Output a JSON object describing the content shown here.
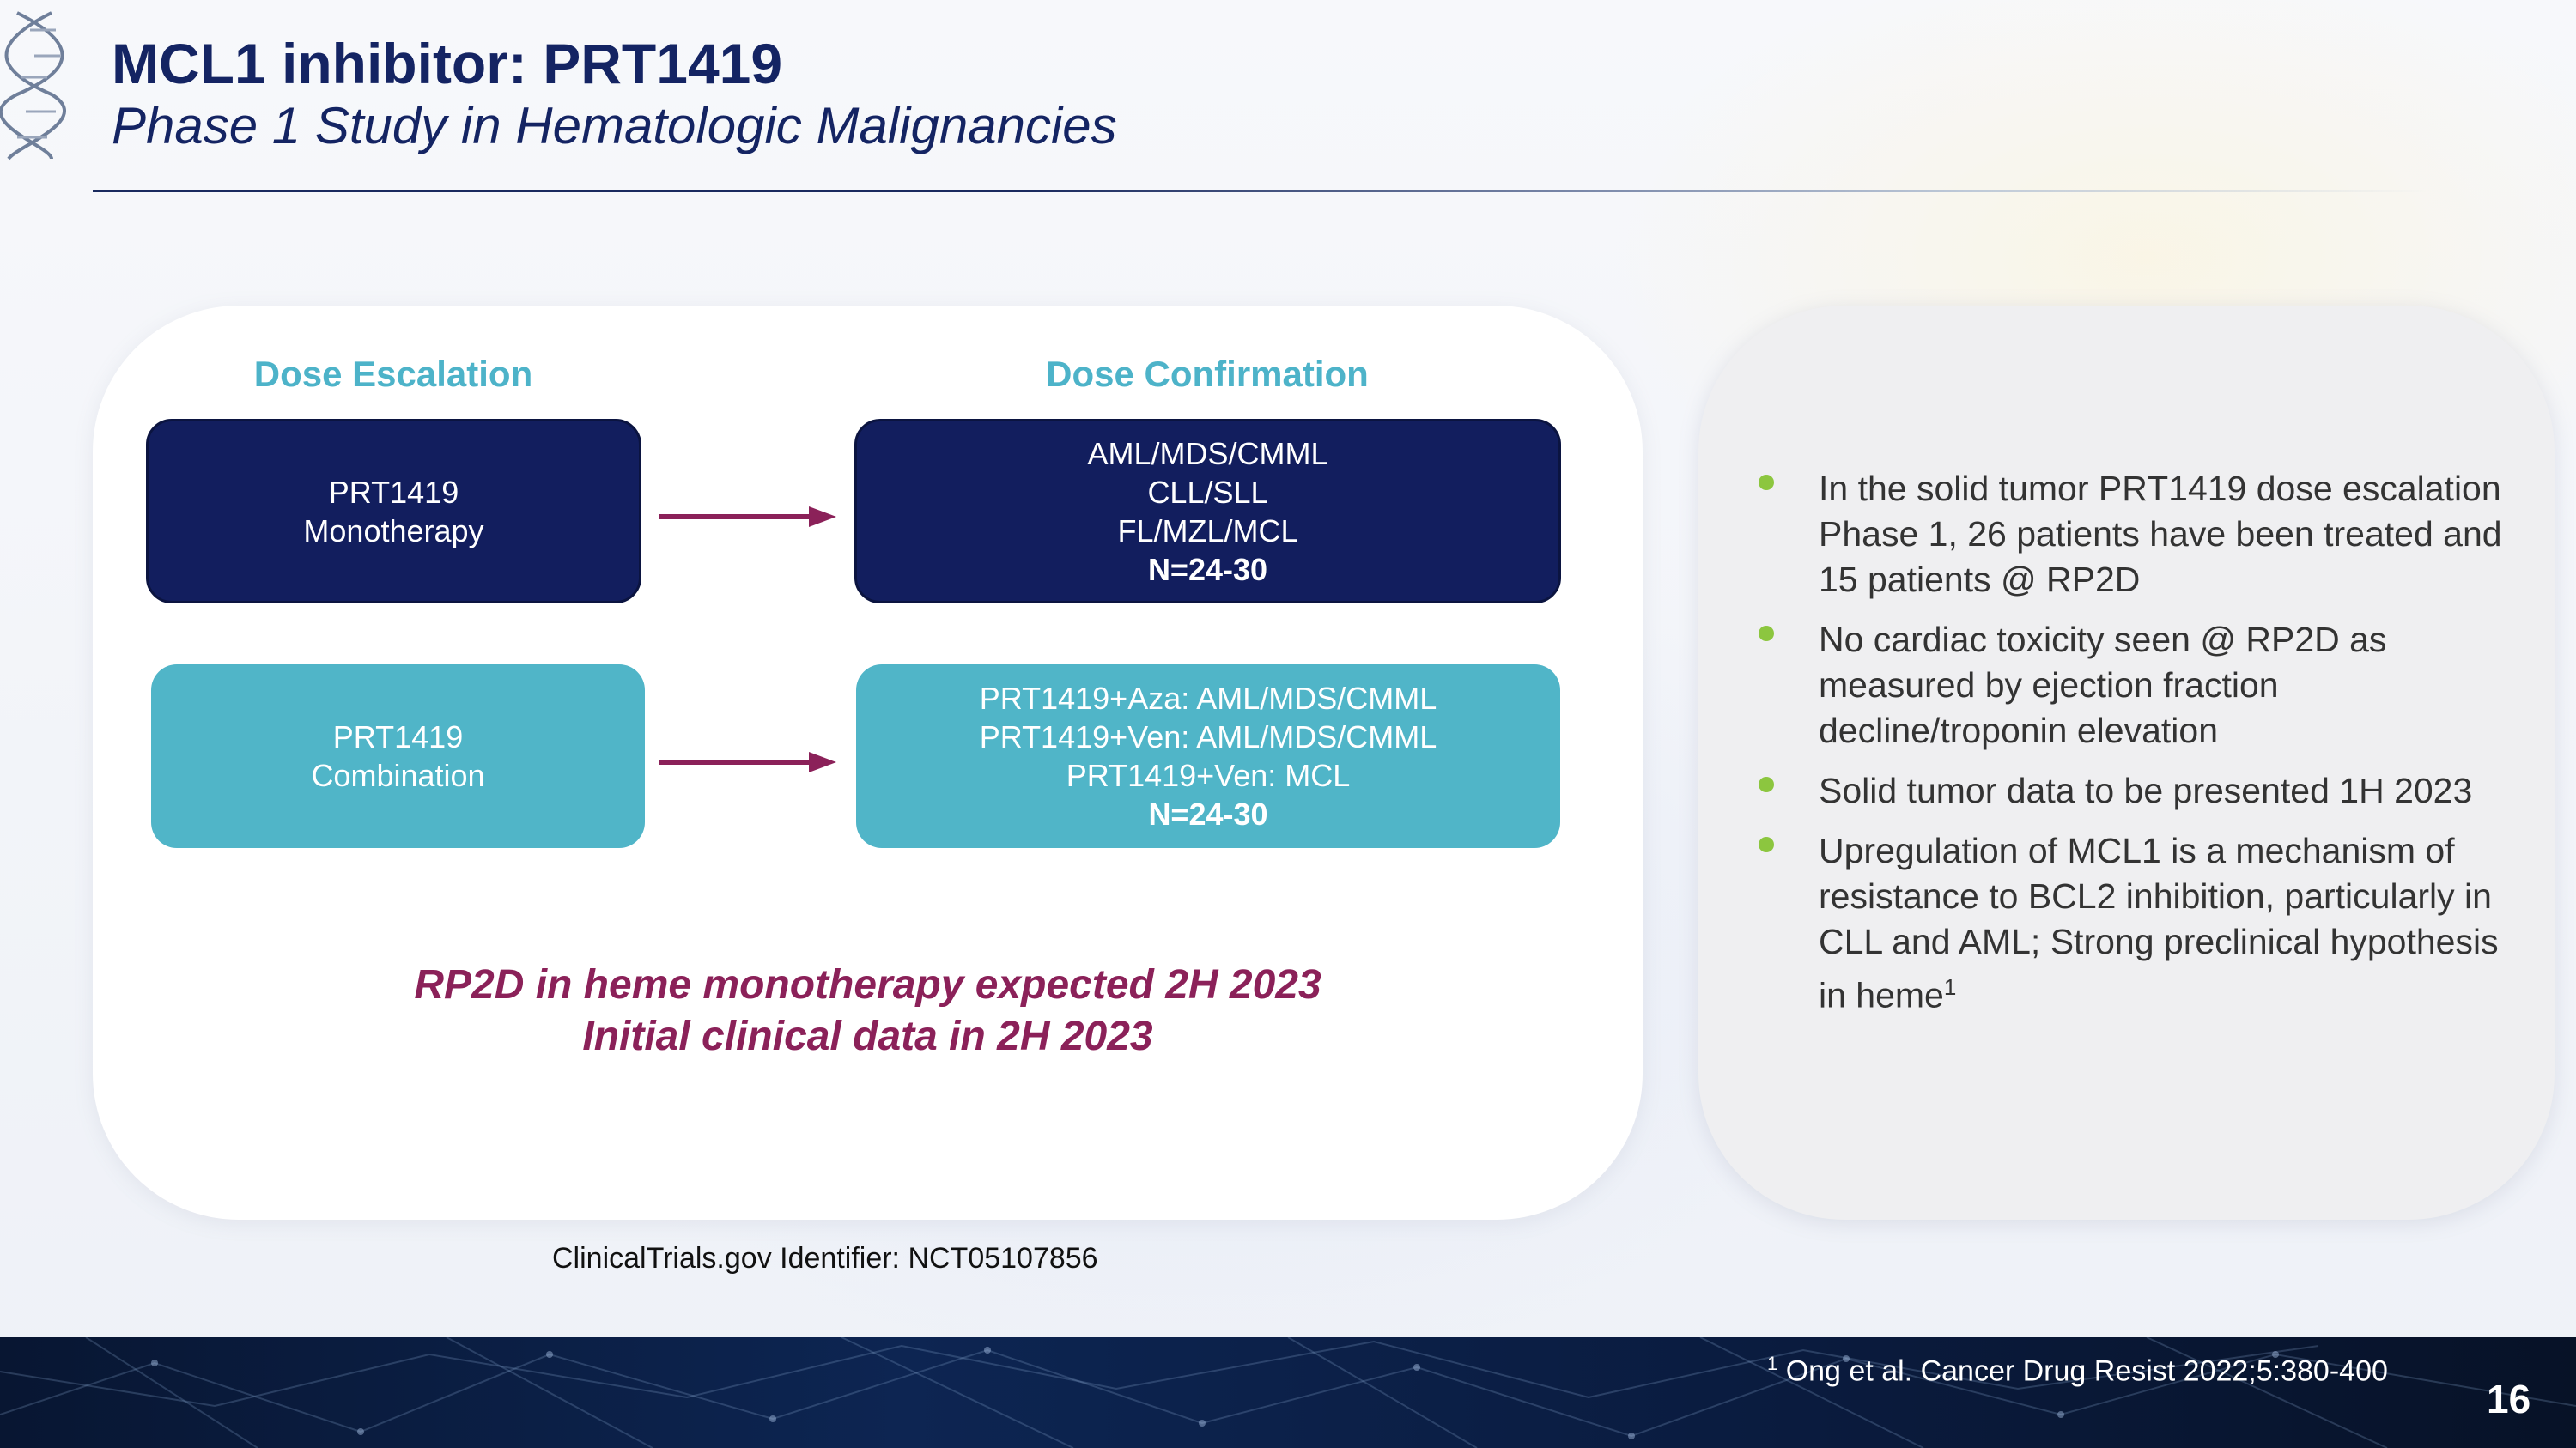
{
  "slide": {
    "title": "MCL1 inhibitor:  PRT1419",
    "subtitle": "Phase 1 Study in Hematologic Malignancies",
    "page_number": "16"
  },
  "design": {
    "columns": {
      "escalation": "Dose Escalation",
      "confirmation": "Dose Confirmation"
    },
    "monotherapy": {
      "line1": "PRT1419",
      "line2": "Monotherapy",
      "confirm_lines": [
        "AML/MDS/CMML",
        "CLL/SLL",
        "FL/MZL/MCL"
      ],
      "n": "N=24-30"
    },
    "combination": {
      "line1": "PRT1419",
      "line2": "Combination",
      "confirm_lines": [
        "PRT1419+Aza: AML/MDS/CMML",
        "PRT1419+Ven: AML/MDS/CMML",
        "PRT1419+Ven: MCL"
      ],
      "n": "N=24-30"
    },
    "conclusion": {
      "line1": "RP2D in heme monotherapy expected 2H 2023",
      "line2": "Initial clinical data in 2H 2023"
    },
    "identifier": "ClinicalTrials.gov Identifier: NCT05107856"
  },
  "highlights": [
    "In the solid tumor PRT1419 dose escalation Phase 1, 26 patients have been treated and 15 patients @ RP2D",
    "No cardiac toxicity seen @ RP2D as measured by ejection fraction decline/troponin elevation",
    "Solid tumor data to be presented 1H 2023",
    "Upregulation of MCL1 is a mechanism of resistance to BCL2 inhibition, particularly in CLL and AML; Strong preclinical hypothesis in heme"
  ],
  "highlight_last_ref": "1",
  "footnote": {
    "ref": "1",
    "text": "Ong et al. Cancer Drug Resist 2022;5:380-400"
  },
  "colors": {
    "navy": "#121e5e",
    "teal": "#50b5c8",
    "header_teal": "#4db3c9",
    "accent_maroon": "#8b2159",
    "bullet_green": "#8cc63f"
  }
}
